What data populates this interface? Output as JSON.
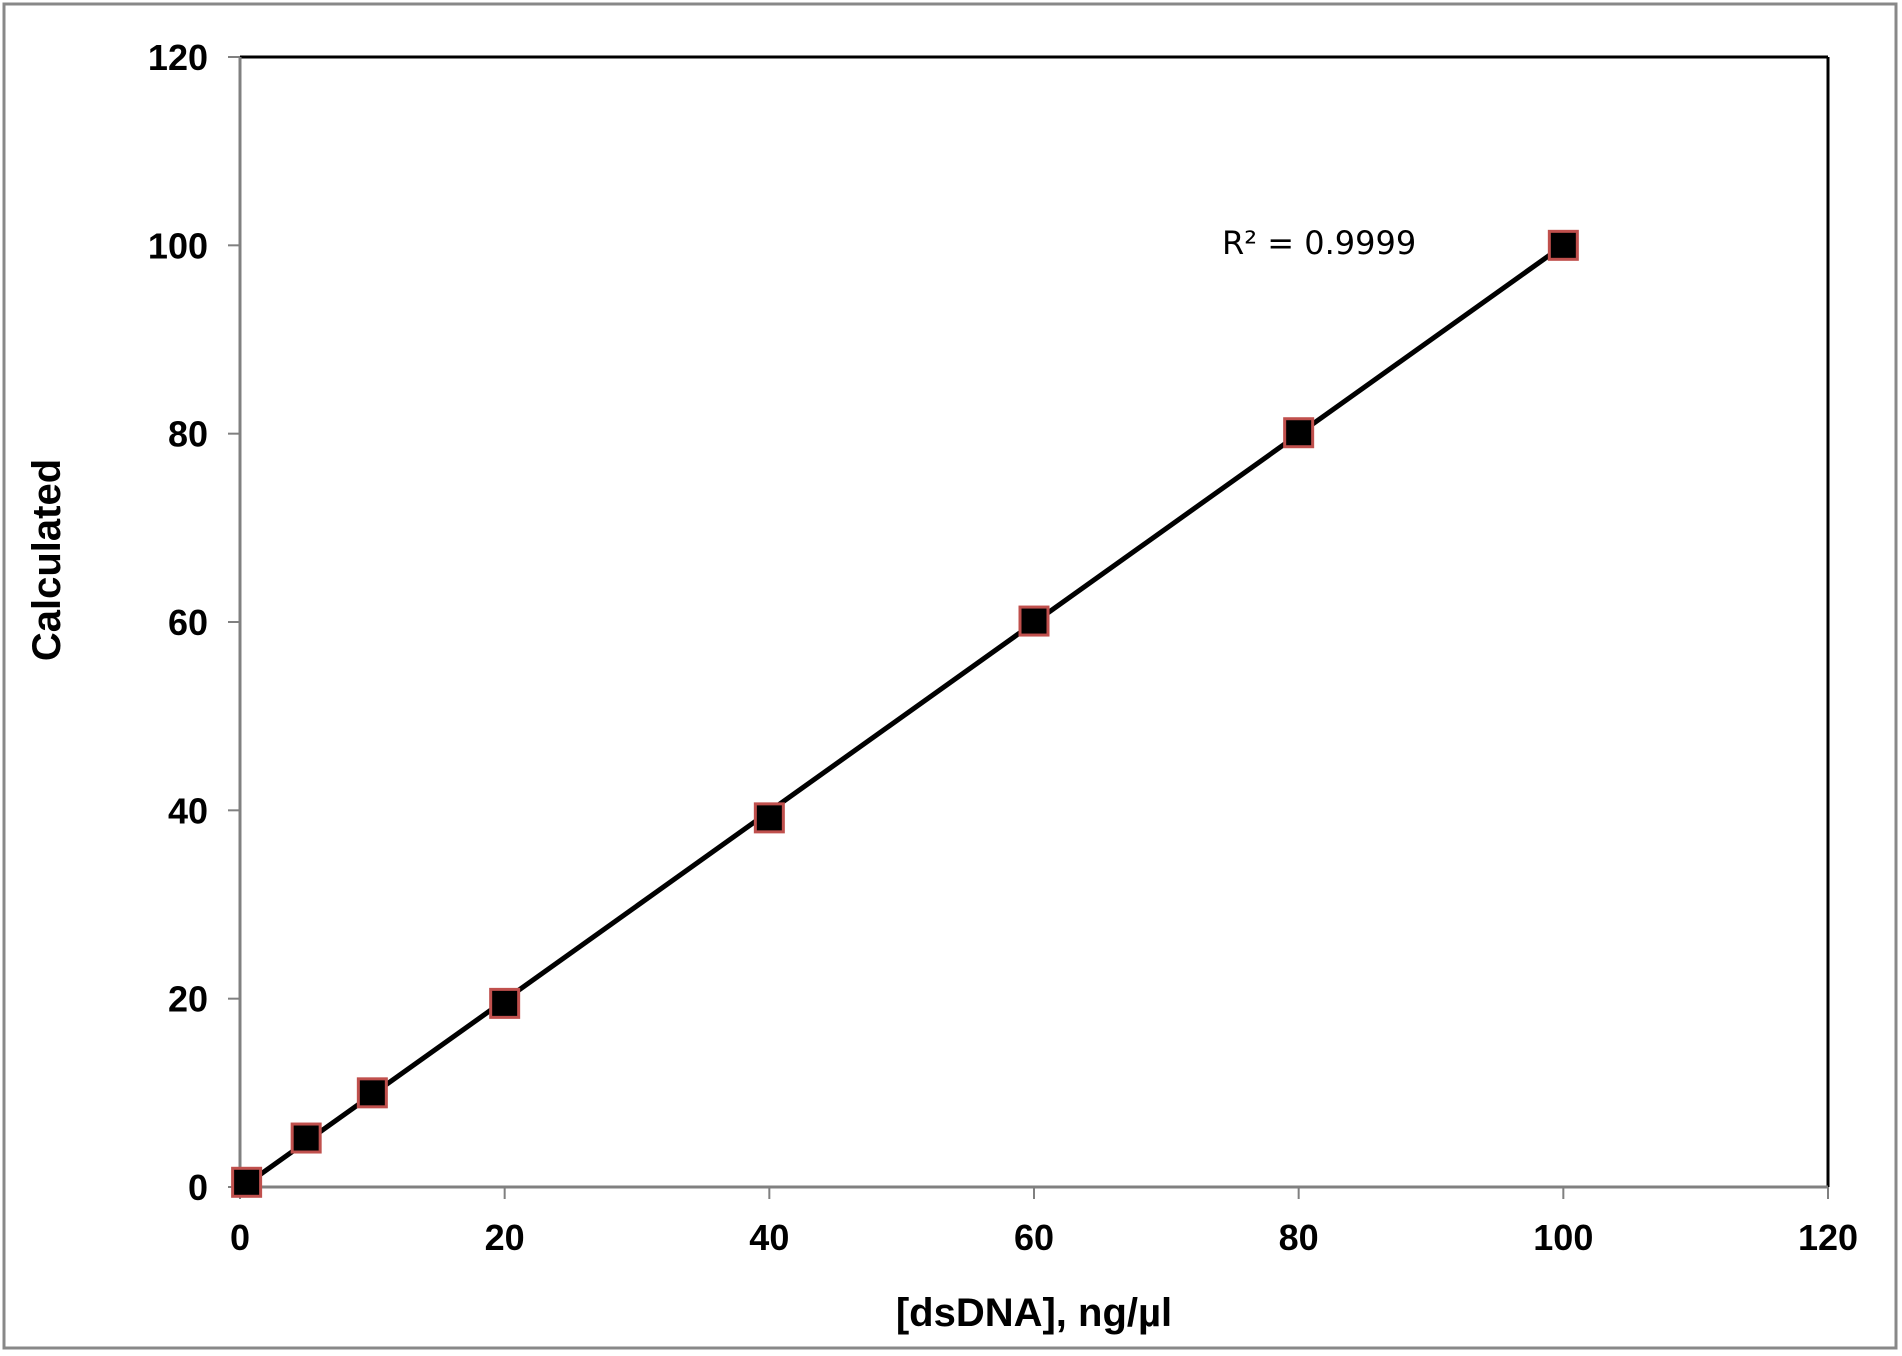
{
  "chart_data": {
    "type": "scatter",
    "title": "",
    "xlabel": "[dsDNA], ng/µl",
    "ylabel": "Calculated",
    "xlim": [
      0,
      120
    ],
    "ylim": [
      0,
      120
    ],
    "xticks": [
      "0",
      "20",
      "40",
      "60",
      "80",
      "100",
      "120"
    ],
    "yticks": [
      "0",
      "20",
      "40",
      "60",
      "80",
      "100",
      "120"
    ],
    "grid": false,
    "legend": "none",
    "series": [
      {
        "name": "Calculated",
        "x": [
          0.5,
          5,
          10,
          20,
          40,
          60,
          80,
          100
        ],
        "y": [
          0.5,
          5.2,
          10,
          19.5,
          39.2,
          60.1,
          80.1,
          100
        ],
        "marker": "square",
        "marker_fill": "#000000",
        "marker_edge": "#c0504d"
      }
    ],
    "trendline": {
      "type": "linear",
      "x": [
        0.5,
        100
      ],
      "y": [
        0.3,
        100
      ],
      "color": "#000000"
    },
    "annotations": [
      "R² = 0.9999"
    ]
  }
}
